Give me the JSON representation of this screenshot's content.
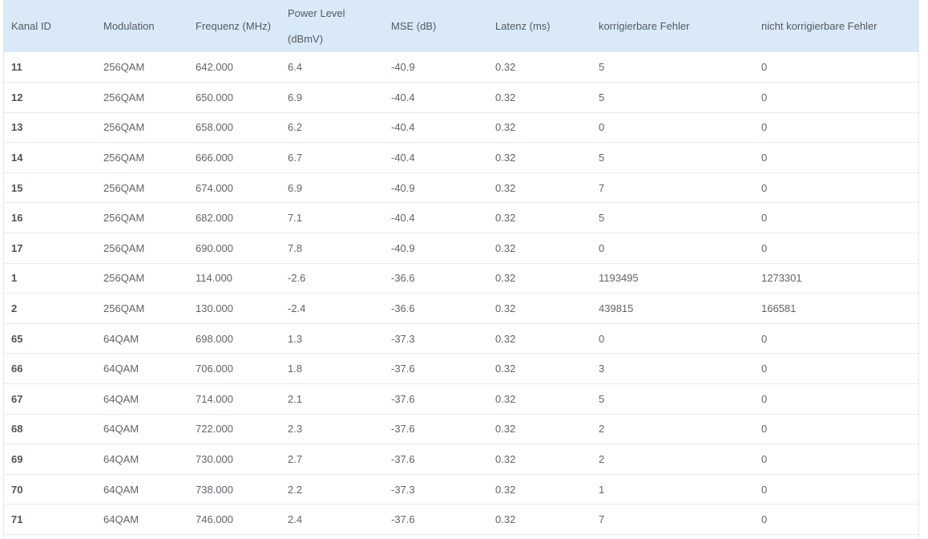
{
  "table": {
    "headers": [
      "Kanal ID",
      "Modulation",
      "Frequenz (MHz)",
      "Power Level (dBmV)",
      "MSE (dB)",
      "Latenz (ms)",
      "korrigierbare Fehler",
      "nicht korrigierbare Fehler"
    ],
    "header_power_line1": "Power Level",
    "header_power_line2": "(dBmV)",
    "rows": [
      [
        "11",
        "256QAM",
        "642.000",
        "6.4",
        "-40.9",
        "0.32",
        "5",
        "0"
      ],
      [
        "12",
        "256QAM",
        "650.000",
        "6.9",
        "-40.4",
        "0.32",
        "5",
        "0"
      ],
      [
        "13",
        "256QAM",
        "658.000",
        "6.2",
        "-40.4",
        "0.32",
        "0",
        "0"
      ],
      [
        "14",
        "256QAM",
        "666.000",
        "6.7",
        "-40.4",
        "0.32",
        "5",
        "0"
      ],
      [
        "15",
        "256QAM",
        "674.000",
        "6.9",
        "-40.9",
        "0.32",
        "7",
        "0"
      ],
      [
        "16",
        "256QAM",
        "682.000",
        "7.1",
        "-40.4",
        "0.32",
        "5",
        "0"
      ],
      [
        "17",
        "256QAM",
        "690.000",
        "7.8",
        "-40.9",
        "0.32",
        "0",
        "0"
      ],
      [
        "1",
        "256QAM",
        "114.000",
        "-2.6",
        "-36.6",
        "0.32",
        "1193495",
        "1273301"
      ],
      [
        "2",
        "256QAM",
        "130.000",
        "-2.4",
        "-36.6",
        "0.32",
        "439815",
        "166581"
      ],
      [
        "65",
        "64QAM",
        "698.000",
        "1.3",
        "-37.3",
        "0.32",
        "0",
        "0"
      ],
      [
        "66",
        "64QAM",
        "706.000",
        "1.8",
        "-37.6",
        "0.32",
        "3",
        "0"
      ],
      [
        "67",
        "64QAM",
        "714.000",
        "2.1",
        "-37.6",
        "0.32",
        "5",
        "0"
      ],
      [
        "68",
        "64QAM",
        "722.000",
        "2.3",
        "-37.6",
        "0.32",
        "2",
        "0"
      ],
      [
        "69",
        "64QAM",
        "730.000",
        "2.7",
        "-37.6",
        "0.32",
        "2",
        "0"
      ],
      [
        "70",
        "64QAM",
        "738.000",
        "2.2",
        "-37.3",
        "0.32",
        "1",
        "0"
      ],
      [
        "71",
        "64QAM",
        "746.000",
        "2.4",
        "-37.6",
        "0.32",
        "7",
        "0"
      ],
      [
        "",
        "",
        "",
        "",
        "",
        "",
        "",
        ""
      ]
    ]
  },
  "colors": {
    "header_bg": "#d9e9f8",
    "row_border": "#e8ebee",
    "text": "#5f646a"
  }
}
